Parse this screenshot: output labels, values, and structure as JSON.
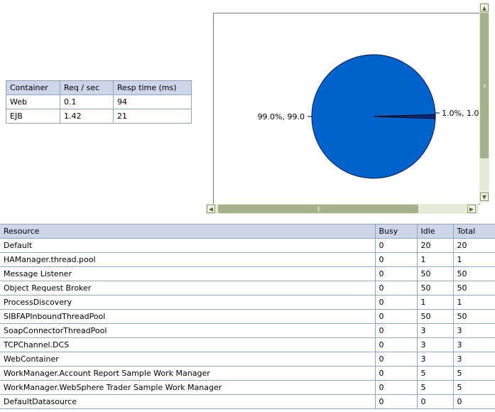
{
  "container_table": {
    "headers": [
      "Container",
      "Req / sec",
      "Resp time (ms)"
    ],
    "rows": [
      [
        "Web",
        "0.1",
        "94"
      ],
      [
        "EJB",
        "1.42",
        "21"
      ]
    ]
  },
  "chart_data": {
    "type": "pie",
    "slices": [
      {
        "label": "99.0%, 99.0",
        "value": 99.0,
        "color": "#0062cc"
      },
      {
        "label": "1.0%, 1.0",
        "value": 1.0,
        "color": "#0d2a7a"
      }
    ]
  },
  "resource_table": {
    "headers": [
      "Resource",
      "Busy",
      "Idle",
      "Total"
    ],
    "rows": [
      [
        "Default",
        "0",
        "20",
        "20"
      ],
      [
        "HAManager.thread.pool",
        "0",
        "1",
        "1"
      ],
      [
        "Message Listener",
        "0",
        "50",
        "50"
      ],
      [
        "Object Request Broker",
        "0",
        "50",
        "50"
      ],
      [
        "ProcessDiscovery",
        "0",
        "1",
        "1"
      ],
      [
        "SIBFAPInboundThreadPool",
        "0",
        "50",
        "50"
      ],
      [
        "SoapConnectorThreadPool",
        "0",
        "3",
        "3"
      ],
      [
        "TCPChannel.DCS",
        "0",
        "3",
        "3"
      ],
      [
        "WebContainer",
        "0",
        "3",
        "3"
      ],
      [
        "WorkManager.Account Report Sample Work Manager",
        "0",
        "5",
        "5"
      ],
      [
        "WorkManager.WebSphere Trader Sample Work Manager",
        "0",
        "5",
        "5"
      ],
      [
        "DefaultDatasource",
        "0",
        "0",
        "0"
      ]
    ]
  },
  "scrollbars": {
    "up_icon": "arrow-up-icon",
    "down_icon": "arrow-down-icon",
    "left_icon": "arrow-left-icon",
    "right_icon": "arrow-right-icon"
  }
}
